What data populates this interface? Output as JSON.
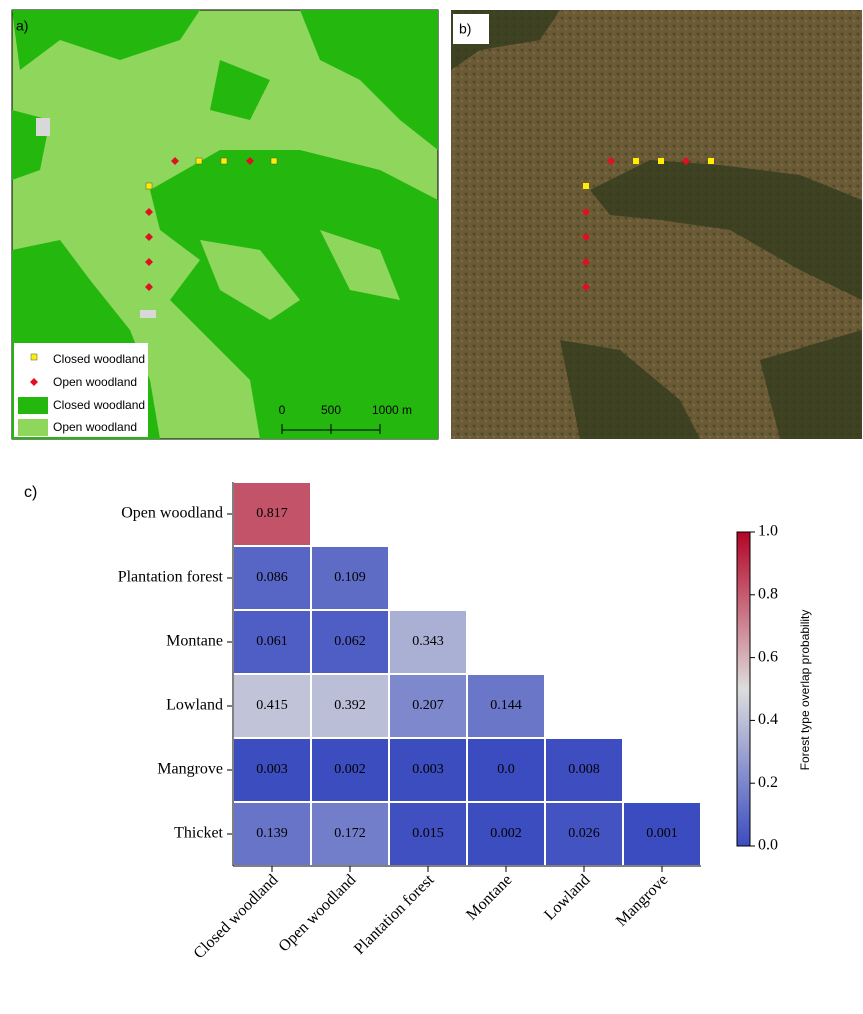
{
  "panel_a": {
    "label": "a)",
    "legend": [
      "Closed woodland",
      "Open woodland",
      "Closed woodland",
      "Open woodland"
    ],
    "scale_labels": [
      "0",
      "500",
      "1000 m"
    ]
  },
  "panel_b": {
    "label": "b)"
  },
  "chart_data": {
    "type": "heatmap",
    "label": "c)",
    "rows": [
      "Open woodland",
      "Plantation forest",
      "Montane",
      "Lowland",
      "Mangrove",
      "Thicket"
    ],
    "columns": [
      "Closed woodland",
      "Open woodland",
      "Plantation forest",
      "Montane",
      "Lowland",
      "Mangrove"
    ],
    "values": [
      [
        0.817,
        null,
        null,
        null,
        null,
        null
      ],
      [
        0.086,
        0.109,
        null,
        null,
        null,
        null
      ],
      [
        0.061,
        0.062,
        0.343,
        null,
        null,
        null
      ],
      [
        0.415,
        0.392,
        0.207,
        0.144,
        null,
        null
      ],
      [
        0.003,
        0.002,
        0.003,
        0,
        0.008,
        null
      ],
      [
        0.139,
        0.172,
        0.015,
        0.002,
        0.026,
        0.001
      ]
    ],
    "value_labels": [
      [
        "0.817",
        null,
        null,
        null,
        null,
        null
      ],
      [
        "0.086",
        "0.109",
        null,
        null,
        null,
        null
      ],
      [
        "0.061",
        "0.062",
        "0.343",
        null,
        null,
        null
      ],
      [
        "0.415",
        "0.392",
        "0.207",
        "0.144",
        null,
        null
      ],
      [
        "0.003",
        "0.002",
        "0.003",
        "0.0",
        "0.008",
        null
      ],
      [
        "0.139",
        "0.172",
        "0.015",
        "0.002",
        "0.026",
        "0.001"
      ]
    ],
    "colors": [
      "#3b4cc0",
      "#dddddd",
      "#b40426"
    ],
    "clim": [
      0,
      1
    ],
    "colorbar_ticks": [
      {
        "value": 0,
        "label": "0.0"
      },
      0.2,
      0.4,
      0.6,
      0.8,
      {
        "value": 1,
        "label": "1.0"
      }
    ],
    "colorbar_label": "Forest type overlap probability"
  }
}
